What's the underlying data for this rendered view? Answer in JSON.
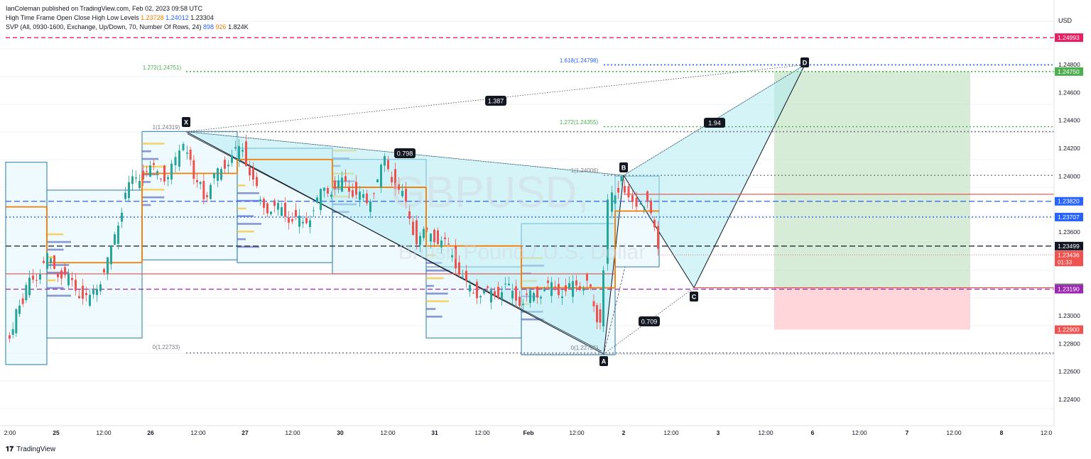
{
  "header": {
    "publisher": "IanColeman published on TradingView.com, Feb 02, 2023 09:58 UTC",
    "indicator1": {
      "name": "High Time Frame Open Close High Low Levels",
      "values": [
        "1.23728",
        "1.24012",
        "1.23304"
      ]
    },
    "indicator2": {
      "name": "SVP (All, 0930-1600, Exchange, Up/Down, 70, Number Of Rows, 24)",
      "values": [
        "898",
        "926",
        "1.824K"
      ]
    }
  },
  "currency": "USD",
  "watermark": {
    "symbol": "GBPUSD, ",
    "description": "British Pound / U.S. Dollar"
  },
  "footer": {
    "brand": "TradingView"
  },
  "colors": {
    "red_level": "#e91e63",
    "blue_level": "#2962ff",
    "green_fib": "#4caf50",
    "candle_up": "#26a69a",
    "candle_down": "#ef5350",
    "pattern_fill": "#b2ebf2",
    "target_zone": "#c8e6c9",
    "stop_zone": "#ffcdd2",
    "htf_box": "#4a90b8",
    "orange_line": "#f57c00"
  },
  "chart_data": {
    "type": "candlestick",
    "y_range": [
      1.222,
      1.251
    ],
    "y_ticks": [
      "1.24800",
      "1.24600",
      "1.24400",
      "1.24200",
      "1.24000",
      "1.23600",
      "1.23000",
      "1.22800",
      "1.22600",
      "1.22400"
    ],
    "x_ticks": [
      "2:00",
      "25",
      "12:00",
      "26",
      "12:00",
      "27",
      "12:00",
      "30",
      "12:00",
      "31",
      "12:00",
      "Feb",
      "12:00",
      "2",
      "12:00",
      "3",
      "12:00",
      "6",
      "12:00",
      "7",
      "12:00",
      "8",
      "12:0"
    ],
    "price_labels": [
      {
        "value": 1.24993,
        "text": "1.24993",
        "color": "#e91e63"
      },
      {
        "value": 1.2475,
        "text": "1.24750",
        "color": "#4caf50"
      },
      {
        "value": 1.2382,
        "text": "1.23820",
        "color": "#2962ff"
      },
      {
        "value": 1.23707,
        "text": "1.23707",
        "color": "#2962ff"
      },
      {
        "value": 1.23499,
        "text": "1.23499",
        "color": "#131722"
      },
      {
        "value": 1.23436,
        "text": "1.23436",
        "sub": "01:33",
        "color": "#ef5350"
      },
      {
        "value": 1.232,
        "text": "1.23200",
        "color": "#787b86"
      },
      {
        "value": 1.2319,
        "text": "1.23190",
        "color": "#9c27b0"
      },
      {
        "value": 1.229,
        "text": "1.22900",
        "color": "#ef5350"
      }
    ],
    "harmonic_pattern": {
      "points": [
        {
          "label": "X",
          "value": 1.24319
        },
        {
          "label": "A",
          "value": 1.22725
        },
        {
          "label": "B",
          "value": 1.24006
        },
        {
          "label": "C",
          "value": 1.232
        },
        {
          "label": "D",
          "value": 1.24798
        }
      ],
      "ratios": [
        "0.798",
        "1.387",
        "0.709",
        "1.94"
      ]
    },
    "fib_labels": [
      {
        "text": "1(1.24319)"
      },
      {
        "text": "0(1.22733)"
      },
      {
        "text": "1(1.24006)"
      },
      {
        "text": "0(1.22725)"
      },
      {
        "text": "1.618(1.24798)"
      },
      {
        "text": "1.272(1.24751)"
      },
      {
        "text": "1.272(1.24355)"
      }
    ]
  }
}
